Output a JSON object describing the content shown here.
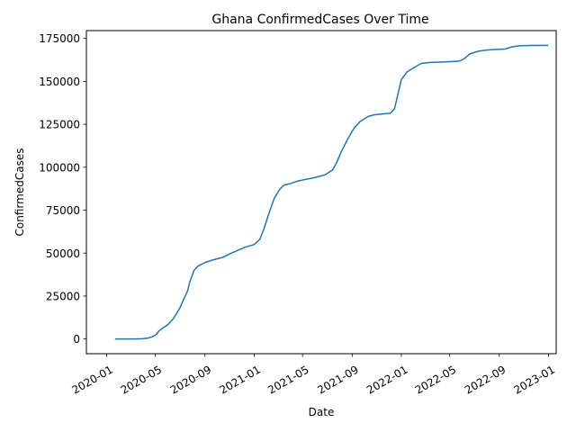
{
  "chart_data": {
    "type": "line",
    "title": "Ghana  ConfirmedCases Over Time",
    "xlabel": "Date",
    "ylabel": "ConfirmedCases",
    "xlim": [
      "2019-11-12",
      "2023-01-20"
    ],
    "ylim": [
      -8550,
      179550
    ],
    "x_ticks": [
      "2020-01",
      "2020-05",
      "2020-09",
      "2021-01",
      "2021-05",
      "2021-09",
      "2022-01",
      "2022-05",
      "2022-09",
      "2023-01"
    ],
    "y_ticks": [
      0,
      25000,
      50000,
      75000,
      100000,
      125000,
      150000,
      175000
    ],
    "y_tick_labels": [
      "0",
      "25000",
      "50000",
      "75000",
      "100000",
      "125000",
      "150000",
      "175000"
    ],
    "grid": false,
    "series": [
      {
        "color": "#1f77b4",
        "points": [
          [
            "2020-01-22",
            0
          ],
          [
            "2020-03-12",
            0
          ],
          [
            "2020-03-31",
            152
          ],
          [
            "2020-04-15",
            636
          ],
          [
            "2020-04-25",
            1550
          ],
          [
            "2020-05-01",
            2200
          ],
          [
            "2020-05-10",
            4700
          ],
          [
            "2020-05-20",
            6500
          ],
          [
            "2020-06-01",
            8300
          ],
          [
            "2020-06-15",
            12000
          ],
          [
            "2020-06-30",
            17700
          ],
          [
            "2020-07-10",
            23000
          ],
          [
            "2020-07-20",
            28000
          ],
          [
            "2020-07-25",
            33000
          ],
          [
            "2020-08-05",
            40000
          ],
          [
            "2020-08-15",
            42500
          ],
          [
            "2020-09-01",
            44500
          ],
          [
            "2020-09-20",
            46000
          ],
          [
            "2020-10-15",
            47500
          ],
          [
            "2020-11-01",
            49500
          ],
          [
            "2020-11-20",
            51500
          ],
          [
            "2020-12-10",
            53500
          ],
          [
            "2021-01-01",
            55000
          ],
          [
            "2021-01-15",
            58000
          ],
          [
            "2021-01-25",
            64000
          ],
          [
            "2021-02-05",
            72000
          ],
          [
            "2021-02-20",
            82000
          ],
          [
            "2021-03-05",
            87000
          ],
          [
            "2021-03-15",
            89500
          ],
          [
            "2021-04-01",
            90500
          ],
          [
            "2021-04-20",
            92000
          ],
          [
            "2021-05-10",
            93000
          ],
          [
            "2021-06-01",
            94000
          ],
          [
            "2021-06-25",
            95500
          ],
          [
            "2021-07-15",
            98500
          ],
          [
            "2021-07-25",
            103000
          ],
          [
            "2021-08-05",
            109000
          ],
          [
            "2021-08-20",
            116000
          ],
          [
            "2021-09-05",
            122500
          ],
          [
            "2021-09-20",
            126500
          ],
          [
            "2021-10-10",
            129500
          ],
          [
            "2021-10-25",
            130500
          ],
          [
            "2021-11-15",
            131000
          ],
          [
            "2021-12-05",
            131500
          ],
          [
            "2021-12-15",
            134000
          ],
          [
            "2021-12-22",
            141000
          ],
          [
            "2022-01-01",
            151000
          ],
          [
            "2022-01-15",
            155500
          ],
          [
            "2022-02-01",
            158000
          ],
          [
            "2022-02-20",
            160500
          ],
          [
            "2022-03-15",
            161000
          ],
          [
            "2022-04-15",
            161300
          ],
          [
            "2022-05-25",
            161800
          ],
          [
            "2022-06-05",
            163000
          ],
          [
            "2022-06-20",
            166000
          ],
          [
            "2022-07-10",
            167500
          ],
          [
            "2022-07-25",
            168000
          ],
          [
            "2022-08-10",
            168400
          ],
          [
            "2022-09-15",
            168800
          ],
          [
            "2022-10-01",
            170000
          ],
          [
            "2022-10-20",
            170700
          ],
          [
            "2022-11-15",
            170900
          ],
          [
            "2022-12-31",
            171000
          ]
        ]
      }
    ]
  }
}
